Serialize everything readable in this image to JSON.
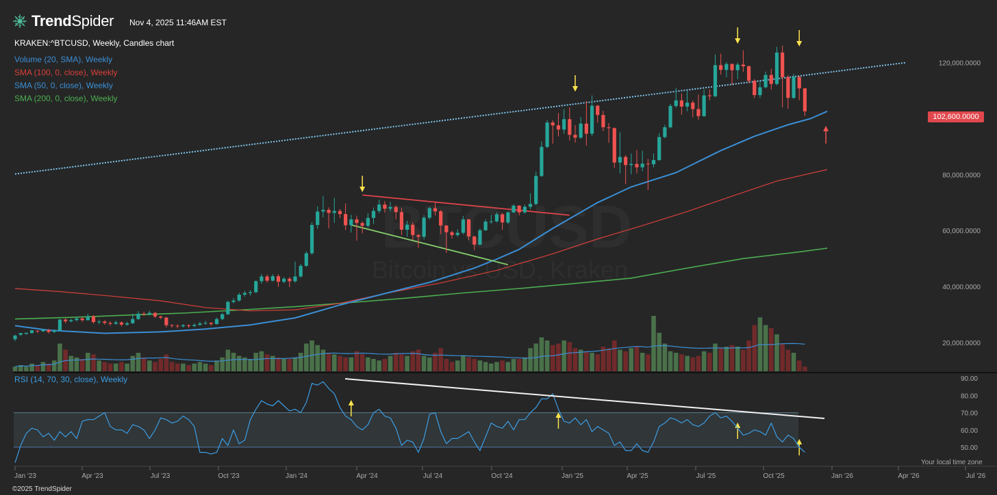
{
  "header": {
    "brand_bold": "Trend",
    "brand_thin": "Spider",
    "datetime": "Nov 4, 2025 11:46AM EST",
    "symbol_line": "KRAKEN:^BTCUSD, Weekly, Candles chart",
    "indicators": [
      {
        "label": "Volume (20, SMA), Weekly",
        "color": "#3b8fd6"
      },
      {
        "label": "SMA (100, 0, close), Weekly",
        "color": "#d9403a"
      },
      {
        "label": "SMA (50, 0, close), Weekly",
        "color": "#3b8fd6"
      },
      {
        "label": "SMA (200, 0, close), Weekly",
        "color": "#4caf50"
      }
    ],
    "rsi_label": "RSI (14, 70, 30, close), Weekly"
  },
  "watermark": {
    "line1": "BTCUSD",
    "line2": "Bitcoin vs USD, Kraken"
  },
  "footer": {
    "copyright": "©2025 TrendSpider",
    "local_time": "Your local time zone"
  },
  "chart_data": {
    "type": "candlestick",
    "price_axis": {
      "ticks": [
        "20,000.0000",
        "40,000.0000",
        "60,000.0000",
        "80,000.0000",
        "120,000.0000"
      ],
      "tick_values": [
        20000,
        40000,
        60000,
        80000,
        120000
      ],
      "last_price_label": "102,600.0000",
      "last_price": 102600
    },
    "rsi_axis": {
      "ticks": [
        "50.00",
        "60.00",
        "70.00",
        "80.00",
        "90.00"
      ],
      "tick_values": [
        50,
        60,
        70,
        80,
        90
      ],
      "bands": [
        70,
        50
      ]
    },
    "time_axis": [
      "Jan '23",
      "Apr '23",
      "Jul '23",
      "Oct '23",
      "Jan '24",
      "Apr '24",
      "Jul '24",
      "Oct '24",
      "Jan '25",
      "Apr '25",
      "Jul '25",
      "Oct '25",
      "Jan '26",
      "Apr '26",
      "Jul '26"
    ],
    "colors": {
      "up": "#26a69a",
      "down": "#ef5350",
      "sma50": "#3b8fd6",
      "sma100": "#d9403a",
      "sma200": "#4caf50",
      "rsi": "#3b9ee6",
      "channel": "#7fc8f0",
      "highlight": "#b83a3a",
      "marker": "#ffe44d"
    },
    "candles": [
      [
        21.2,
        22.5,
        20.5,
        22.8
      ],
      [
        22.8,
        23.4,
        22.3,
        23.1
      ],
      [
        23.1,
        23.5,
        22.8,
        23.4
      ],
      [
        23.4,
        24.4,
        23.2,
        24.2
      ],
      [
        24.2,
        24.0,
        23.4,
        24.4
      ],
      [
        24.0,
        24.5,
        23.8,
        24.9
      ],
      [
        24.5,
        23.8,
        23.2,
        24.9
      ],
      [
        23.8,
        24.3,
        23.4,
        24.7
      ],
      [
        24.3,
        28.2,
        24.0,
        28.4
      ],
      [
        28.2,
        27.6,
        26.9,
        28.7
      ],
      [
        27.6,
        28.0,
        27.2,
        28.5
      ],
      [
        28.0,
        28.6,
        27.6,
        29.2
      ],
      [
        28.6,
        28.0,
        27.4,
        29.1
      ],
      [
        28.0,
        29.4,
        27.8,
        30.3
      ],
      [
        29.4,
        27.3,
        26.8,
        29.8
      ],
      [
        27.3,
        27.5,
        26.5,
        28.2
      ],
      [
        27.5,
        27.0,
        26.4,
        28.0
      ],
      [
        27.0,
        26.7,
        26.0,
        27.6
      ],
      [
        26.7,
        27.2,
        26.3,
        27.8
      ],
      [
        27.2,
        26.4,
        25.8,
        27.5
      ],
      [
        26.4,
        26.9,
        26.0,
        27.4
      ],
      [
        26.9,
        28.4,
        26.6,
        30.3
      ],
      [
        28.4,
        30.3,
        28.1,
        31.2
      ],
      [
        30.3,
        30.1,
        29.5,
        31.0
      ],
      [
        30.1,
        30.6,
        29.7,
        31.4
      ],
      [
        30.6,
        29.3,
        28.8,
        30.9
      ],
      [
        29.3,
        28.9,
        28.4,
        29.6
      ],
      [
        28.9,
        26.2,
        25.4,
        29.2
      ],
      [
        26.2,
        26.0,
        25.3,
        26.6
      ],
      [
        26.0,
        25.8,
        25.1,
        26.5
      ],
      [
        25.8,
        26.2,
        25.4,
        26.6
      ],
      [
        26.2,
        25.9,
        25.2,
        26.5
      ],
      [
        25.9,
        26.3,
        25.5,
        26.9
      ],
      [
        26.3,
        26.8,
        26.0,
        27.4
      ],
      [
        26.8,
        27.0,
        26.4,
        27.7
      ],
      [
        27.0,
        26.6,
        26.0,
        27.3
      ],
      [
        26.6,
        28.4,
        26.4,
        28.9
      ],
      [
        28.4,
        30.1,
        28.0,
        30.6
      ],
      [
        30.1,
        34.5,
        29.8,
        35.0
      ],
      [
        34.5,
        35.0,
        34.0,
        35.9
      ],
      [
        35.0,
        37.1,
        34.6,
        37.8
      ],
      [
        37.1,
        37.7,
        36.4,
        38.4
      ],
      [
        37.7,
        38.0,
        36.8,
        38.7
      ],
      [
        38.0,
        41.9,
        37.6,
        42.3
      ],
      [
        41.9,
        43.6,
        41.0,
        44.5
      ],
      [
        43.6,
        42.1,
        41.4,
        44.3
      ],
      [
        42.1,
        43.7,
        41.8,
        44.4
      ],
      [
        43.7,
        41.7,
        39.9,
        44.4
      ],
      [
        41.7,
        42.8,
        41.2,
        43.4
      ],
      [
        42.8,
        41.9,
        39.8,
        43.4
      ],
      [
        41.9,
        43.6,
        41.4,
        48.9
      ],
      [
        43.6,
        47.4,
        43.2,
        48.1
      ],
      [
        47.4,
        51.9,
        47.0,
        52.6
      ],
      [
        51.9,
        62.0,
        51.4,
        63.0
      ],
      [
        62.0,
        66.8,
        60.6,
        68.7
      ],
      [
        66.8,
        67.4,
        64.7,
        72.3
      ],
      [
        67.4,
        66.3,
        60.8,
        68.3
      ],
      [
        66.3,
        67.0,
        62.7,
        71.7
      ],
      [
        67.0,
        65.9,
        64.5,
        67.7
      ],
      [
        65.9,
        61.9,
        60.2,
        69.7
      ],
      [
        61.9,
        64.0,
        59.3,
        65.6
      ],
      [
        64.0,
        62.7,
        56.4,
        65.3
      ],
      [
        62.7,
        61.7,
        59.0,
        63.3
      ],
      [
        61.7,
        64.5,
        61.0,
        66.2
      ],
      [
        64.5,
        67.0,
        62.4,
        68.2
      ],
      [
        67.0,
        69.3,
        66.2,
        71.0
      ],
      [
        69.3,
        67.8,
        66.4,
        70.5
      ],
      [
        67.8,
        68.4,
        66.8,
        70.2
      ],
      [
        68.4,
        66.6,
        64.0,
        69.1
      ],
      [
        66.6,
        60.3,
        58.4,
        68.1
      ],
      [
        60.3,
        62.1,
        57.8,
        63.5
      ],
      [
        62.1,
        58.4,
        56.6,
        63.0
      ],
      [
        58.4,
        57.8,
        53.8,
        58.7
      ],
      [
        57.8,
        64.6,
        56.8,
        65.5
      ],
      [
        64.6,
        68.0,
        64.0,
        68.5
      ],
      [
        68.0,
        66.9,
        65.4,
        70.0
      ],
      [
        66.9,
        61.8,
        58.7,
        67.3
      ],
      [
        61.8,
        59.4,
        52.0,
        62.0
      ],
      [
        59.4,
        58.4,
        57.2,
        60.0
      ],
      [
        58.4,
        59.2,
        57.8,
        60.5
      ],
      [
        59.2,
        64.0,
        58.6,
        65.2
      ],
      [
        64.0,
        57.9,
        56.6,
        64.2
      ],
      [
        57.9,
        55.0,
        53.0,
        58.0
      ],
      [
        55.0,
        60.1,
        54.7,
        60.7
      ],
      [
        60.1,
        63.2,
        59.9,
        64.1
      ],
      [
        63.2,
        63.3,
        62.4,
        65.6
      ],
      [
        63.3,
        65.8,
        62.9,
        66.5
      ],
      [
        65.8,
        62.9,
        60.3,
        66.4
      ],
      [
        62.9,
        66.5,
        62.3,
        66.9
      ],
      [
        66.5,
        68.9,
        66.3,
        69.4
      ],
      [
        68.9,
        66.5,
        65.4,
        69.1
      ],
      [
        66.5,
        68.5,
        66.0,
        69.3
      ],
      [
        68.5,
        69.5,
        67.6,
        73.3
      ],
      [
        69.5,
        79.5,
        69.0,
        81.0
      ],
      [
        79.5,
        89.9,
        79.2,
        91.8
      ],
      [
        89.9,
        98.6,
        89.5,
        99.5
      ],
      [
        98.6,
        97.6,
        91.0,
        99.4
      ],
      [
        97.6,
        96.1,
        93.6,
        102.0
      ],
      [
        96.1,
        99.8,
        94.6,
        103.4
      ],
      [
        99.8,
        94.2,
        92.2,
        104.0
      ],
      [
        94.2,
        93.2,
        91.4,
        97.7
      ],
      [
        93.2,
        98.2,
        92.8,
        100.6
      ],
      [
        98.2,
        94.6,
        90.3,
        106.3
      ],
      [
        94.6,
        104.6,
        93.7,
        108.3
      ],
      [
        104.6,
        101.3,
        98.6,
        104.9
      ],
      [
        101.3,
        96.9,
        95.5,
        102.8
      ],
      [
        96.9,
        96.6,
        91.4,
        98.4
      ],
      [
        96.6,
        84.3,
        82.4,
        96.8
      ],
      [
        84.3,
        86.3,
        80.4,
        95.1
      ],
      [
        86.3,
        83.4,
        76.6,
        87.0
      ],
      [
        83.4,
        83.8,
        80.1,
        87.5
      ],
      [
        83.8,
        82.6,
        80.4,
        88.8
      ],
      [
        82.6,
        83.9,
        81.2,
        88.5
      ],
      [
        83.9,
        83.7,
        74.5,
        85.6
      ],
      [
        83.7,
        85.2,
        82.6,
        87.6
      ],
      [
        85.2,
        93.4,
        84.9,
        94.8
      ],
      [
        93.4,
        96.9,
        93.0,
        97.8
      ],
      [
        96.9,
        104.5,
        96.5,
        105.3
      ],
      [
        104.5,
        106.5,
        103.9,
        111.0
      ],
      [
        106.5,
        104.3,
        101.4,
        109.0
      ],
      [
        104.3,
        105.7,
        102.6,
        110.1
      ],
      [
        105.7,
        103.4,
        100.4,
        106.5
      ],
      [
        103.4,
        100.9,
        99.6,
        108.6
      ],
      [
        100.9,
        108.3,
        100.6,
        110.4
      ],
      [
        108.3,
        108.0,
        106.6,
        110.4
      ],
      [
        108.0,
        119.1,
        107.6,
        122.9
      ],
      [
        119.1,
        117.4,
        115.7,
        123.2
      ],
      [
        117.4,
        119.5,
        114.8,
        120.2
      ],
      [
        119.5,
        117.3,
        112.0,
        119.7
      ],
      [
        117.3,
        119.3,
        114.1,
        120.0
      ],
      [
        119.3,
        118.7,
        116.7,
        124.4
      ],
      [
        118.7,
        113.5,
        112.6,
        119.0
      ],
      [
        113.5,
        108.4,
        107.3,
        114.1
      ],
      [
        108.4,
        111.2,
        107.3,
        113.4
      ],
      [
        111.2,
        115.6,
        110.8,
        116.8
      ],
      [
        115.6,
        112.4,
        110.4,
        117.8
      ],
      [
        112.4,
        123.6,
        111.9,
        125.6
      ],
      [
        123.6,
        114.8,
        104.0,
        126.1
      ],
      [
        114.8,
        107.4,
        103.5,
        115.5
      ],
      [
        107.4,
        114.9,
        107.0,
        116.0
      ],
      [
        114.9,
        110.8,
        106.6,
        115.3
      ],
      [
        110.8,
        102.6,
        100.9,
        111.0
      ]
    ],
    "volume_k": [
      3,
      4,
      3,
      5,
      4,
      6,
      5,
      7,
      18,
      14,
      10,
      9,
      8,
      12,
      11,
      7,
      6,
      5,
      5,
      6,
      5,
      10,
      12,
      9,
      7,
      6,
      8,
      11,
      6,
      5,
      5,
      4,
      5,
      6,
      5,
      4,
      7,
      9,
      14,
      12,
      10,
      9,
      8,
      12,
      13,
      11,
      10,
      9,
      8,
      8,
      9,
      12,
      18,
      20,
      17,
      14,
      12,
      11,
      10,
      9,
      9,
      13,
      11,
      9,
      8,
      7,
      8,
      10,
      12,
      11,
      10,
      13,
      14,
      10,
      9,
      12,
      15,
      8,
      6,
      7,
      10,
      9,
      8,
      7,
      6,
      5,
      6,
      7,
      6,
      8,
      8,
      9,
      15,
      18,
      22,
      20,
      17,
      18,
      20,
      19,
      15,
      14,
      13,
      12,
      11,
      16,
      15,
      20,
      14,
      13,
      15,
      16,
      12,
      11,
      36,
      25,
      18,
      13,
      12,
      11,
      10,
      9,
      10,
      13,
      12,
      18,
      15,
      16,
      17,
      16,
      14,
      20,
      30,
      35,
      30,
      28,
      24,
      18,
      14,
      12,
      7,
      3
    ],
    "rsi_values": [
      41,
      51,
      58,
      61,
      60,
      56,
      58,
      54,
      59,
      56,
      59,
      55,
      65,
      66,
      66,
      68,
      70,
      62,
      60,
      60,
      58,
      63,
      62,
      60,
      55,
      60,
      67,
      66,
      64,
      65,
      68,
      66,
      62,
      47,
      47,
      46,
      47,
      55,
      51,
      60,
      52,
      54,
      66,
      72,
      77,
      75,
      74,
      77,
      74,
      71,
      72,
      70,
      76,
      87,
      86,
      88,
      84,
      81,
      73,
      68,
      66,
      62,
      60,
      63,
      70,
      72,
      68,
      67,
      61,
      51,
      54,
      53,
      47,
      55,
      69,
      70,
      59,
      52,
      55,
      55,
      57,
      59,
      53,
      48,
      56,
      64,
      62,
      61,
      65,
      60,
      66,
      66,
      70,
      73,
      78,
      78,
      81,
      72,
      65,
      64,
      67,
      63,
      66,
      59,
      62,
      60,
      58,
      51,
      53,
      48,
      48,
      52,
      48,
      47,
      53,
      62,
      64,
      67,
      66,
      64,
      66,
      63,
      62,
      64,
      68,
      70,
      67,
      68,
      65,
      61,
      57,
      58,
      60,
      59,
      57,
      64,
      56,
      53,
      57,
      55,
      50,
      47
    ],
    "sma50": [
      [
        0,
        26.0
      ],
      [
        6,
        24.4
      ],
      [
        16,
        23.3
      ],
      [
        26,
        23.8
      ],
      [
        34,
        24.8
      ],
      [
        42,
        26.3
      ],
      [
        50,
        28.8
      ],
      [
        58,
        33.4
      ],
      [
        66,
        37.5
      ],
      [
        74,
        41.5
      ],
      [
        82,
        46.6
      ],
      [
        86,
        49.8
      ],
      [
        90,
        53.3
      ],
      [
        96,
        60.8
      ],
      [
        104,
        70.0
      ],
      [
        110,
        75.6
      ],
      [
        118,
        80.7
      ],
      [
        126,
        88.6
      ],
      [
        132,
        93.7
      ],
      [
        138,
        97.8
      ],
      [
        142,
        100.0
      ],
      [
        145,
        102.6
      ]
    ],
    "sma100": [
      [
        0,
        39.3
      ],
      [
        8,
        38.2
      ],
      [
        16,
        36.8
      ],
      [
        26,
        34.9
      ],
      [
        34,
        32.5
      ],
      [
        42,
        31.3
      ],
      [
        50,
        31.7
      ],
      [
        58,
        34.0
      ],
      [
        66,
        37.5
      ],
      [
        76,
        41.3
      ],
      [
        86,
        45.8
      ],
      [
        96,
        51.7
      ],
      [
        104,
        57.0
      ],
      [
        112,
        61.8
      ],
      [
        120,
        66.8
      ],
      [
        128,
        72.3
      ],
      [
        136,
        77.7
      ],
      [
        145,
        81.8
      ]
    ],
    "sma200": [
      [
        0,
        28.4
      ],
      [
        10,
        29.0
      ],
      [
        20,
        29.8
      ],
      [
        30,
        30.5
      ],
      [
        40,
        31.6
      ],
      [
        50,
        32.8
      ],
      [
        60,
        34.3
      ],
      [
        70,
        35.9
      ],
      [
        80,
        37.7
      ],
      [
        90,
        39.3
      ],
      [
        100,
        41.1
      ],
      [
        110,
        43.0
      ],
      [
        120,
        46.6
      ],
      [
        130,
        50.0
      ],
      [
        140,
        52.4
      ],
      [
        145,
        53.7
      ]
    ],
    "rsi_trendline": [
      [
        61,
        89
      ],
      [
        150,
        70
      ]
    ],
    "price_trendlines": [
      {
        "name": "channel",
        "from": [
          0,
          80.2
        ],
        "to": [
          159,
          120.0
        ],
        "style": "dotted",
        "color": "#7fc8f0"
      },
      {
        "name": "pennant-upper",
        "from": [
          62,
          72.7
        ],
        "to": [
          99,
          65.5
        ],
        "color": "#e0444a"
      },
      {
        "name": "pennant-lower",
        "from": [
          60,
          62.0
        ],
        "to": [
          88,
          47.8
        ],
        "color": "#86d06c"
      }
    ],
    "price_arrows_down": [
      62,
      100,
      129,
      140
    ],
    "price_arrow_up": [
      145,
      90.5
    ],
    "rsi_arrows_up": [
      60,
      97,
      129,
      140
    ]
  }
}
